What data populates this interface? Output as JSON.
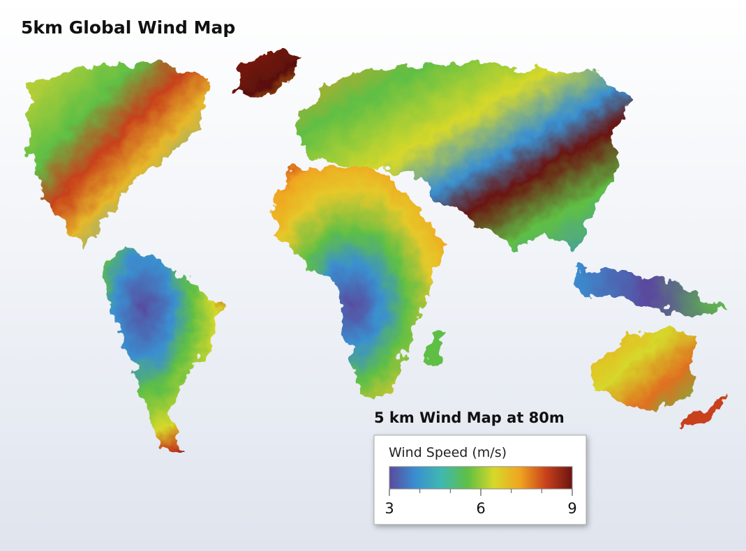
{
  "title": "5km Global Wind Map",
  "legend": {
    "title": "5 km Wind Map at 80m",
    "label": "Wind Speed (m/s)",
    "range": [
      3,
      9
    ],
    "ticks": [
      3,
      6,
      9
    ],
    "minor_ticks": [
      4,
      5,
      7,
      8
    ],
    "colors": [
      "#5a4a9e",
      "#3a8fd0",
      "#3fb8b0",
      "#5fbf45",
      "#d6d82a",
      "#f0a420",
      "#c8401c",
      "#6a1410"
    ]
  }
}
